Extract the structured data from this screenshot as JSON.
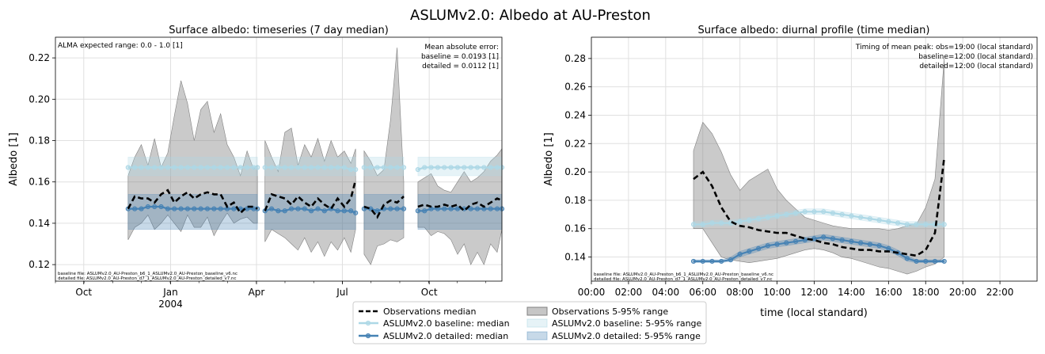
{
  "figure": {
    "suptitle": "ASLUMv2.0: Albedo at AU-Preston"
  },
  "colors": {
    "obs": "#000000",
    "obs_range": "#808080",
    "baseline": "#add8e6",
    "detailed": "#4682b4",
    "grid": "#e0e0e0"
  },
  "chart_data": [
    {
      "type": "line",
      "title": "Surface albedo: timeseries (7 day median)",
      "ylabel": "Albedo [1]",
      "xlabel": "",
      "x_unit": "days since 2003-09-01",
      "xlim": [
        0,
        473
      ],
      "ylim": [
        0.112,
        0.23
      ],
      "yticks": [
        0.12,
        0.14,
        0.16,
        0.18,
        0.2,
        0.22
      ],
      "ytick_labels": [
        "0.12",
        "0.14",
        "0.16",
        "0.18",
        "0.20",
        "0.22"
      ],
      "xticks": [
        30,
        122,
        213,
        304,
        396
      ],
      "xtick_labels": [
        "Oct",
        "Jan",
        "Apr",
        "Jul",
        "Oct"
      ],
      "xtick_sublabels": [
        "",
        "2004",
        "",
        "",
        ""
      ],
      "annotations": {
        "top_left": "ALMA expected range: 0.0 - 1.0 [1]",
        "top_right": [
          "Mean absolute error:",
          "baseline = 0.0193 [1]",
          "detailed = 0.0112 [1]"
        ],
        "bottom_left": [
          "baseline file: ASLUMv2.0_AU-Preston_b6_1_ASLUMv2.0_AU-Preston_baseline_v6.nc",
          "detailed file: ASLUMv2.0_AU-Preston_d7_1_ASLUMv2.0_AU-Preston_detailed_v7.nc"
        ]
      },
      "segments": [
        {
          "x": [
            77,
            84,
            91,
            98,
            105,
            112,
            119,
            126,
            133,
            140,
            147,
            154,
            161,
            168,
            175,
            182,
            189,
            196,
            203,
            210,
            214
          ],
          "obs_median": [
            0.147,
            0.153,
            0.152,
            0.152,
            0.15,
            0.154,
            0.156,
            0.15,
            0.153,
            0.155,
            0.152,
            0.154,
            0.155,
            0.154,
            0.154,
            0.148,
            0.15,
            0.145,
            0.148,
            0.148,
            0.147
          ],
          "obs_p5": [
            0.132,
            0.138,
            0.14,
            0.144,
            0.137,
            0.14,
            0.144,
            0.14,
            0.136,
            0.144,
            0.138,
            0.138,
            0.143,
            0.134,
            0.14,
            0.145,
            0.14,
            0.142,
            0.143,
            0.14,
            0.14
          ],
          "obs_p95": [
            0.163,
            0.172,
            0.178,
            0.168,
            0.181,
            0.167,
            0.174,
            0.192,
            0.209,
            0.198,
            0.18,
            0.195,
            0.199,
            0.184,
            0.193,
            0.178,
            0.172,
            0.163,
            0.175,
            0.166,
            0.168
          ],
          "baseline_median": [
            0.167,
            0.167,
            0.167,
            0.167,
            0.167,
            0.167,
            0.167,
            0.167,
            0.167,
            0.167,
            0.167,
            0.167,
            0.167,
            0.167,
            0.167,
            0.167,
            0.167,
            0.167,
            0.167,
            0.167,
            0.167
          ],
          "baseline_p5": 0.163,
          "baseline_p95": 0.172,
          "detailed_median": [
            0.147,
            0.147,
            0.147,
            0.148,
            0.148,
            0.148,
            0.147,
            0.147,
            0.147,
            0.147,
            0.147,
            0.147,
            0.147,
            0.147,
            0.147,
            0.147,
            0.147,
            0.147,
            0.147,
            0.147,
            0.147
          ],
          "detailed_p5": 0.137,
          "detailed_p95": 0.154
        },
        {
          "x": [
            222,
            229,
            236,
            243,
            250,
            257,
            264,
            271,
            278,
            285,
            292,
            299,
            306,
            313,
            318
          ],
          "obs_median": [
            0.146,
            0.154,
            0.153,
            0.152,
            0.149,
            0.153,
            0.15,
            0.148,
            0.152,
            0.149,
            0.147,
            0.152,
            0.148,
            0.152,
            0.161
          ],
          "obs_p5": [
            0.131,
            0.137,
            0.135,
            0.133,
            0.13,
            0.127,
            0.133,
            0.126,
            0.131,
            0.124,
            0.131,
            0.127,
            0.133,
            0.126,
            0.137
          ],
          "obs_p95": [
            0.18,
            0.172,
            0.165,
            0.184,
            0.186,
            0.168,
            0.178,
            0.172,
            0.181,
            0.17,
            0.18,
            0.172,
            0.175,
            0.169,
            0.176
          ],
          "baseline_median": [
            0.167,
            0.167,
            0.167,
            0.167,
            0.167,
            0.167,
            0.167,
            0.167,
            0.167,
            0.167,
            0.167,
            0.167,
            0.167,
            0.166,
            0.166
          ],
          "baseline_p5": 0.163,
          "baseline_p95": 0.172,
          "detailed_median": [
            0.146,
            0.147,
            0.146,
            0.146,
            0.147,
            0.147,
            0.147,
            0.146,
            0.147,
            0.146,
            0.147,
            0.146,
            0.146,
            0.146,
            0.145
          ],
          "detailed_p5": 0.137,
          "detailed_p95": 0.154
        },
        {
          "x": [
            327,
            334,
            341,
            348,
            355,
            362,
            369
          ],
          "obs_median": [
            0.148,
            0.147,
            0.143,
            0.149,
            0.151,
            0.15,
            0.153
          ],
          "obs_p5": [
            0.125,
            0.12,
            0.129,
            0.13,
            0.132,
            0.131,
            0.133
          ],
          "obs_p95": [
            0.175,
            0.17,
            0.163,
            0.166,
            0.19,
            0.225,
            0.16
          ],
          "baseline_median": [
            0.167,
            0.167,
            0.167,
            0.167,
            0.167,
            0.167,
            0.167
          ],
          "baseline_p5": 0.163,
          "baseline_p95": 0.172,
          "detailed_median": [
            0.147,
            0.147,
            0.146,
            0.147,
            0.147,
            0.147,
            0.147
          ],
          "detailed_p5": 0.137,
          "detailed_p95": 0.154
        },
        {
          "x": [
            384,
            391,
            398,
            405,
            412,
            419,
            426,
            433,
            440,
            447,
            454,
            461,
            468,
            473
          ],
          "obs_median": [
            0.148,
            0.149,
            0.148,
            0.148,
            0.149,
            0.148,
            0.149,
            0.146,
            0.149,
            0.15,
            0.148,
            0.15,
            0.152,
            0.151
          ],
          "obs_p5": [
            0.138,
            0.138,
            0.134,
            0.136,
            0.135,
            0.132,
            0.125,
            0.13,
            0.12,
            0.126,
            0.12,
            0.13,
            0.126,
            0.137
          ],
          "obs_p95": [
            0.16,
            0.162,
            0.164,
            0.158,
            0.156,
            0.155,
            0.16,
            0.165,
            0.16,
            0.162,
            0.165,
            0.17,
            0.173,
            0.176
          ],
          "baseline_median": [
            0.166,
            0.167,
            0.167,
            0.167,
            0.167,
            0.167,
            0.167,
            0.167,
            0.167,
            0.167,
            0.167,
            0.167,
            0.167,
            0.167
          ],
          "baseline_p5": 0.163,
          "baseline_p95": 0.172,
          "detailed_median": [
            0.146,
            0.146,
            0.147,
            0.147,
            0.147,
            0.147,
            0.147,
            0.147,
            0.147,
            0.147,
            0.147,
            0.147,
            0.147,
            0.147
          ],
          "detailed_p5": 0.137,
          "detailed_p95": 0.154
        }
      ]
    },
    {
      "type": "line",
      "title": "Surface albedo: diurnal profile (time median)",
      "ylabel": "Albedo [1]",
      "xlabel": "time (local standard)",
      "xlim": [
        0,
        24
      ],
      "ylim": [
        0.123,
        0.295
      ],
      "yticks": [
        0.14,
        0.16,
        0.18,
        0.2,
        0.22,
        0.24,
        0.26,
        0.28
      ],
      "ytick_labels": [
        "0.14",
        "0.16",
        "0.18",
        "0.20",
        "0.22",
        "0.24",
        "0.26",
        "0.28"
      ],
      "xticks": [
        0,
        2,
        4,
        6,
        8,
        10,
        12,
        14,
        16,
        18,
        20,
        22
      ],
      "xtick_labels": [
        "00:00",
        "02:00",
        "04:00",
        "06:00",
        "08:00",
        "10:00",
        "12:00",
        "14:00",
        "16:00",
        "18:00",
        "20:00",
        "22:00"
      ],
      "annotations": {
        "top_right": [
          "Timing of mean peak: obs=19:00 (local standard)",
          "baseline=12:00 (local standard)",
          "detailed=12:00 (local standard)"
        ],
        "bottom_left": [
          "baseline file: ASLUMv2.0_AU-Preston_b6_1_ASLUMv2.0_AU-Preston_baseline_v6.nc",
          "detailed file: ASLUMv2.0_AU-Preston_d7_1_ASLUMv2.0_AU-Preston_detailed_v7.nc"
        ]
      },
      "x": [
        5.5,
        6.0,
        6.5,
        7.0,
        7.5,
        8.0,
        8.5,
        9.0,
        9.5,
        10.0,
        10.5,
        11.0,
        11.5,
        12.0,
        12.5,
        13.0,
        13.5,
        14.0,
        14.5,
        15.0,
        15.5,
        16.0,
        16.5,
        17.0,
        17.5,
        18.0,
        18.5,
        19.0
      ],
      "obs_median": [
        0.195,
        0.2,
        0.19,
        0.175,
        0.165,
        0.162,
        0.161,
        0.159,
        0.158,
        0.157,
        0.157,
        0.155,
        0.153,
        0.152,
        0.15,
        0.149,
        0.147,
        0.146,
        0.145,
        0.145,
        0.144,
        0.144,
        0.143,
        0.142,
        0.141,
        0.145,
        0.157,
        0.21
      ],
      "obs_p5": [
        0.16,
        0.16,
        0.15,
        0.14,
        0.138,
        0.137,
        0.136,
        0.137,
        0.138,
        0.139,
        0.141,
        0.143,
        0.145,
        0.146,
        0.145,
        0.143,
        0.14,
        0.139,
        0.137,
        0.135,
        0.133,
        0.132,
        0.13,
        0.128,
        0.13,
        0.133,
        0.135,
        0.14
      ],
      "obs_p95": [
        0.215,
        0.235,
        0.227,
        0.214,
        0.198,
        0.187,
        0.194,
        0.198,
        0.202,
        0.188,
        0.18,
        0.174,
        0.168,
        0.166,
        0.164,
        0.162,
        0.161,
        0.16,
        0.16,
        0.16,
        0.16,
        0.159,
        0.16,
        0.162,
        0.163,
        0.175,
        0.195,
        0.28
      ],
      "baseline_median": [
        0.163,
        0.163,
        0.164,
        0.164,
        0.164,
        0.165,
        0.166,
        0.167,
        0.168,
        0.169,
        0.17,
        0.171,
        0.172,
        0.172,
        0.172,
        0.171,
        0.17,
        0.169,
        0.168,
        0.167,
        0.166,
        0.165,
        0.164,
        0.163,
        0.163,
        0.163,
        0.163,
        0.163
      ],
      "baseline_p5": [
        0.161,
        0.161,
        0.162,
        0.162,
        0.162,
        0.163,
        0.164,
        0.165,
        0.166,
        0.167,
        0.168,
        0.169,
        0.17,
        0.17,
        0.17,
        0.169,
        0.168,
        0.167,
        0.166,
        0.165,
        0.164,
        0.163,
        0.162,
        0.161,
        0.161,
        0.161,
        0.161,
        0.161
      ],
      "baseline_p95": [
        0.165,
        0.165,
        0.166,
        0.166,
        0.166,
        0.167,
        0.168,
        0.169,
        0.17,
        0.171,
        0.172,
        0.173,
        0.174,
        0.174,
        0.174,
        0.173,
        0.172,
        0.171,
        0.17,
        0.169,
        0.168,
        0.167,
        0.166,
        0.165,
        0.165,
        0.165,
        0.165,
        0.165
      ],
      "detailed_median": [
        0.137,
        0.137,
        0.137,
        0.137,
        0.138,
        0.142,
        0.144,
        0.146,
        0.148,
        0.149,
        0.15,
        0.151,
        0.152,
        0.153,
        0.154,
        0.153,
        0.152,
        0.151,
        0.15,
        0.149,
        0.148,
        0.146,
        0.143,
        0.139,
        0.137,
        0.137,
        0.137,
        0.137
      ],
      "detailed_p5": [
        0.136,
        0.136,
        0.136,
        0.136,
        0.137,
        0.14,
        0.142,
        0.144,
        0.146,
        0.147,
        0.148,
        0.149,
        0.15,
        0.151,
        0.152,
        0.151,
        0.15,
        0.149,
        0.148,
        0.147,
        0.146,
        0.144,
        0.141,
        0.137,
        0.136,
        0.136,
        0.136,
        0.136
      ],
      "detailed_p95": [
        0.138,
        0.138,
        0.138,
        0.138,
        0.14,
        0.144,
        0.146,
        0.148,
        0.15,
        0.151,
        0.152,
        0.153,
        0.154,
        0.155,
        0.156,
        0.155,
        0.154,
        0.153,
        0.152,
        0.151,
        0.15,
        0.148,
        0.145,
        0.141,
        0.138,
        0.138,
        0.138,
        0.138
      ]
    }
  ],
  "legend": {
    "items": [
      {
        "label": "Observations median",
        "key": "obs_median"
      },
      {
        "label": "ASLUMv2.0 baseline: median",
        "key": "baseline_median"
      },
      {
        "label": "ASLUMv2.0 detailed: median",
        "key": "detailed_median"
      },
      {
        "label": "Observations 5-95% range",
        "key": "obs_range"
      },
      {
        "label": "ASLUMv2.0 baseline: 5-95% range",
        "key": "baseline_range"
      },
      {
        "label": "ASLUMv2.0 detailed: 5-95% range",
        "key": "detailed_range"
      }
    ]
  }
}
